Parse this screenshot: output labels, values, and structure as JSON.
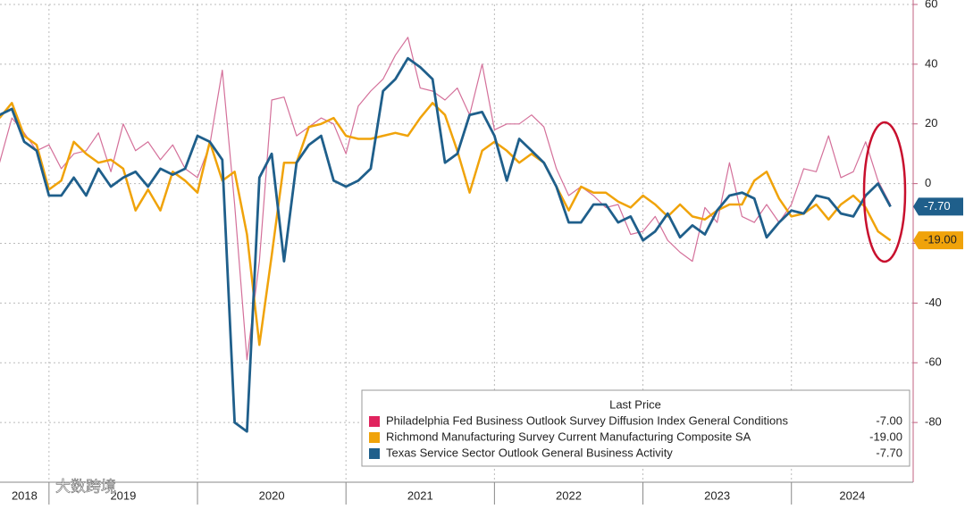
{
  "chart_data": {
    "type": "line",
    "legend_title": "Last Price",
    "watermark": "大数跨境",
    "x": [
      2018.667,
      2018.75,
      2018.833,
      2018.917,
      2019.0,
      2019.083,
      2019.167,
      2019.25,
      2019.333,
      2019.417,
      2019.5,
      2019.583,
      2019.667,
      2019.75,
      2019.833,
      2019.917,
      2020.0,
      2020.083,
      2020.167,
      2020.25,
      2020.333,
      2020.417,
      2020.5,
      2020.583,
      2020.667,
      2020.75,
      2020.833,
      2020.917,
      2021.0,
      2021.083,
      2021.167,
      2021.25,
      2021.333,
      2021.417,
      2021.5,
      2021.583,
      2021.667,
      2021.75,
      2021.833,
      2021.917,
      2022.0,
      2022.083,
      2022.167,
      2022.25,
      2022.333,
      2022.417,
      2022.5,
      2022.583,
      2022.667,
      2022.75,
      2022.833,
      2022.917,
      2023.0,
      2023.083,
      2023.167,
      2023.25,
      2023.333,
      2023.417,
      2023.5,
      2023.583,
      2023.667,
      2023.75,
      2023.833,
      2023.917,
      2024.0,
      2024.083,
      2024.167,
      2024.25,
      2024.333,
      2024.417,
      2024.5,
      2024.583,
      2024.667
    ],
    "xlim": [
      2018.67,
      2024.82
    ],
    "xticks": [
      {
        "value": 2018,
        "label": "2018"
      },
      {
        "value": 2019,
        "label": "2019"
      },
      {
        "value": 2020,
        "label": "2020"
      },
      {
        "value": 2021,
        "label": "2021"
      },
      {
        "value": 2022,
        "label": "2022"
      },
      {
        "value": 2023,
        "label": "2023"
      },
      {
        "value": 2024,
        "label": "2024"
      }
    ],
    "ylim": [
      -100,
      60
    ],
    "yticks": [
      60,
      40,
      20,
      0,
      -20,
      -40,
      -60,
      -80
    ],
    "grid": true,
    "series": [
      {
        "name": "Philadelphia Fed Business Outlook Survey Diffusion Index General Conditions",
        "color": "#d4709a",
        "legend_color": "#e0245e",
        "width": 1.2,
        "last_price": -7.0,
        "last_price_label": "-7.00",
        "values": [
          7,
          22,
          17,
          11,
          13,
          5,
          10,
          11,
          17,
          4,
          20,
          11,
          14,
          8,
          13,
          5,
          2,
          13,
          38,
          -7,
          -59,
          -26,
          28,
          29,
          16,
          19,
          22,
          20,
          10,
          26,
          31,
          35,
          43,
          49,
          32,
          31,
          28,
          32,
          23,
          40,
          18,
          20,
          20,
          23,
          19,
          5,
          -4,
          -1,
          -4,
          -8,
          -7,
          -17,
          -16,
          -11,
          -19,
          -23,
          -26,
          -8,
          -13,
          7,
          -11,
          -13,
          -7,
          -13,
          -7,
          5,
          4,
          16,
          2,
          4,
          14,
          1,
          -7
        ]
      },
      {
        "name": "Richmond Manufacturing Survey Current Manufacturing Composite SA",
        "color": "#f0a30a",
        "legend_color": "#f0a30a",
        "width": 2.5,
        "last_price": -19.0,
        "last_price_label": "-19.00",
        "values": [
          22,
          27,
          16,
          13,
          -2,
          1,
          14,
          10,
          7,
          8,
          5,
          -9,
          -2,
          -9,
          4,
          1,
          -3,
          14,
          1,
          4,
          -17,
          -54,
          -24,
          7,
          7,
          19,
          20,
          22,
          16,
          15,
          15,
          16,
          17,
          16,
          22,
          27,
          23,
          11,
          -3,
          11,
          14,
          11,
          7,
          10,
          7,
          -1,
          -9,
          -1,
          -3,
          -3,
          -6,
          -8,
          -4,
          -7,
          -11,
          -7,
          -11,
          -12,
          -9,
          -7,
          -7,
          1,
          4,
          -5,
          -11,
          -10,
          -7,
          -12,
          -7,
          -4,
          -8,
          -16,
          -19
        ]
      },
      {
        "name": "Texas Service Sector Outlook General Business Activity",
        "color": "#1f5f8b",
        "legend_color": "#1f5f8b",
        "width": 2.8,
        "last_price": -7.7,
        "last_price_label": "-7.70",
        "values": [
          23,
          25,
          14,
          11,
          -4,
          -4,
          2,
          -4,
          5,
          -1,
          2,
          4,
          -1,
          5,
          3,
          5,
          16,
          14,
          8,
          -80,
          -83,
          2,
          10,
          -26,
          7,
          13,
          16,
          1,
          -1,
          1,
          5,
          31,
          35,
          42,
          39,
          35,
          7,
          10,
          23,
          24,
          16,
          1,
          15,
          11,
          7,
          -1,
          -13,
          -13,
          -7,
          -7,
          -13,
          -11,
          -19,
          -16,
          -10,
          -18,
          -14,
          -17,
          -9,
          -4,
          -3,
          -5,
          -18,
          -13,
          -9,
          -10,
          -4,
          -5,
          -10,
          -11,
          -4,
          0,
          -7.7
        ]
      }
    ]
  }
}
